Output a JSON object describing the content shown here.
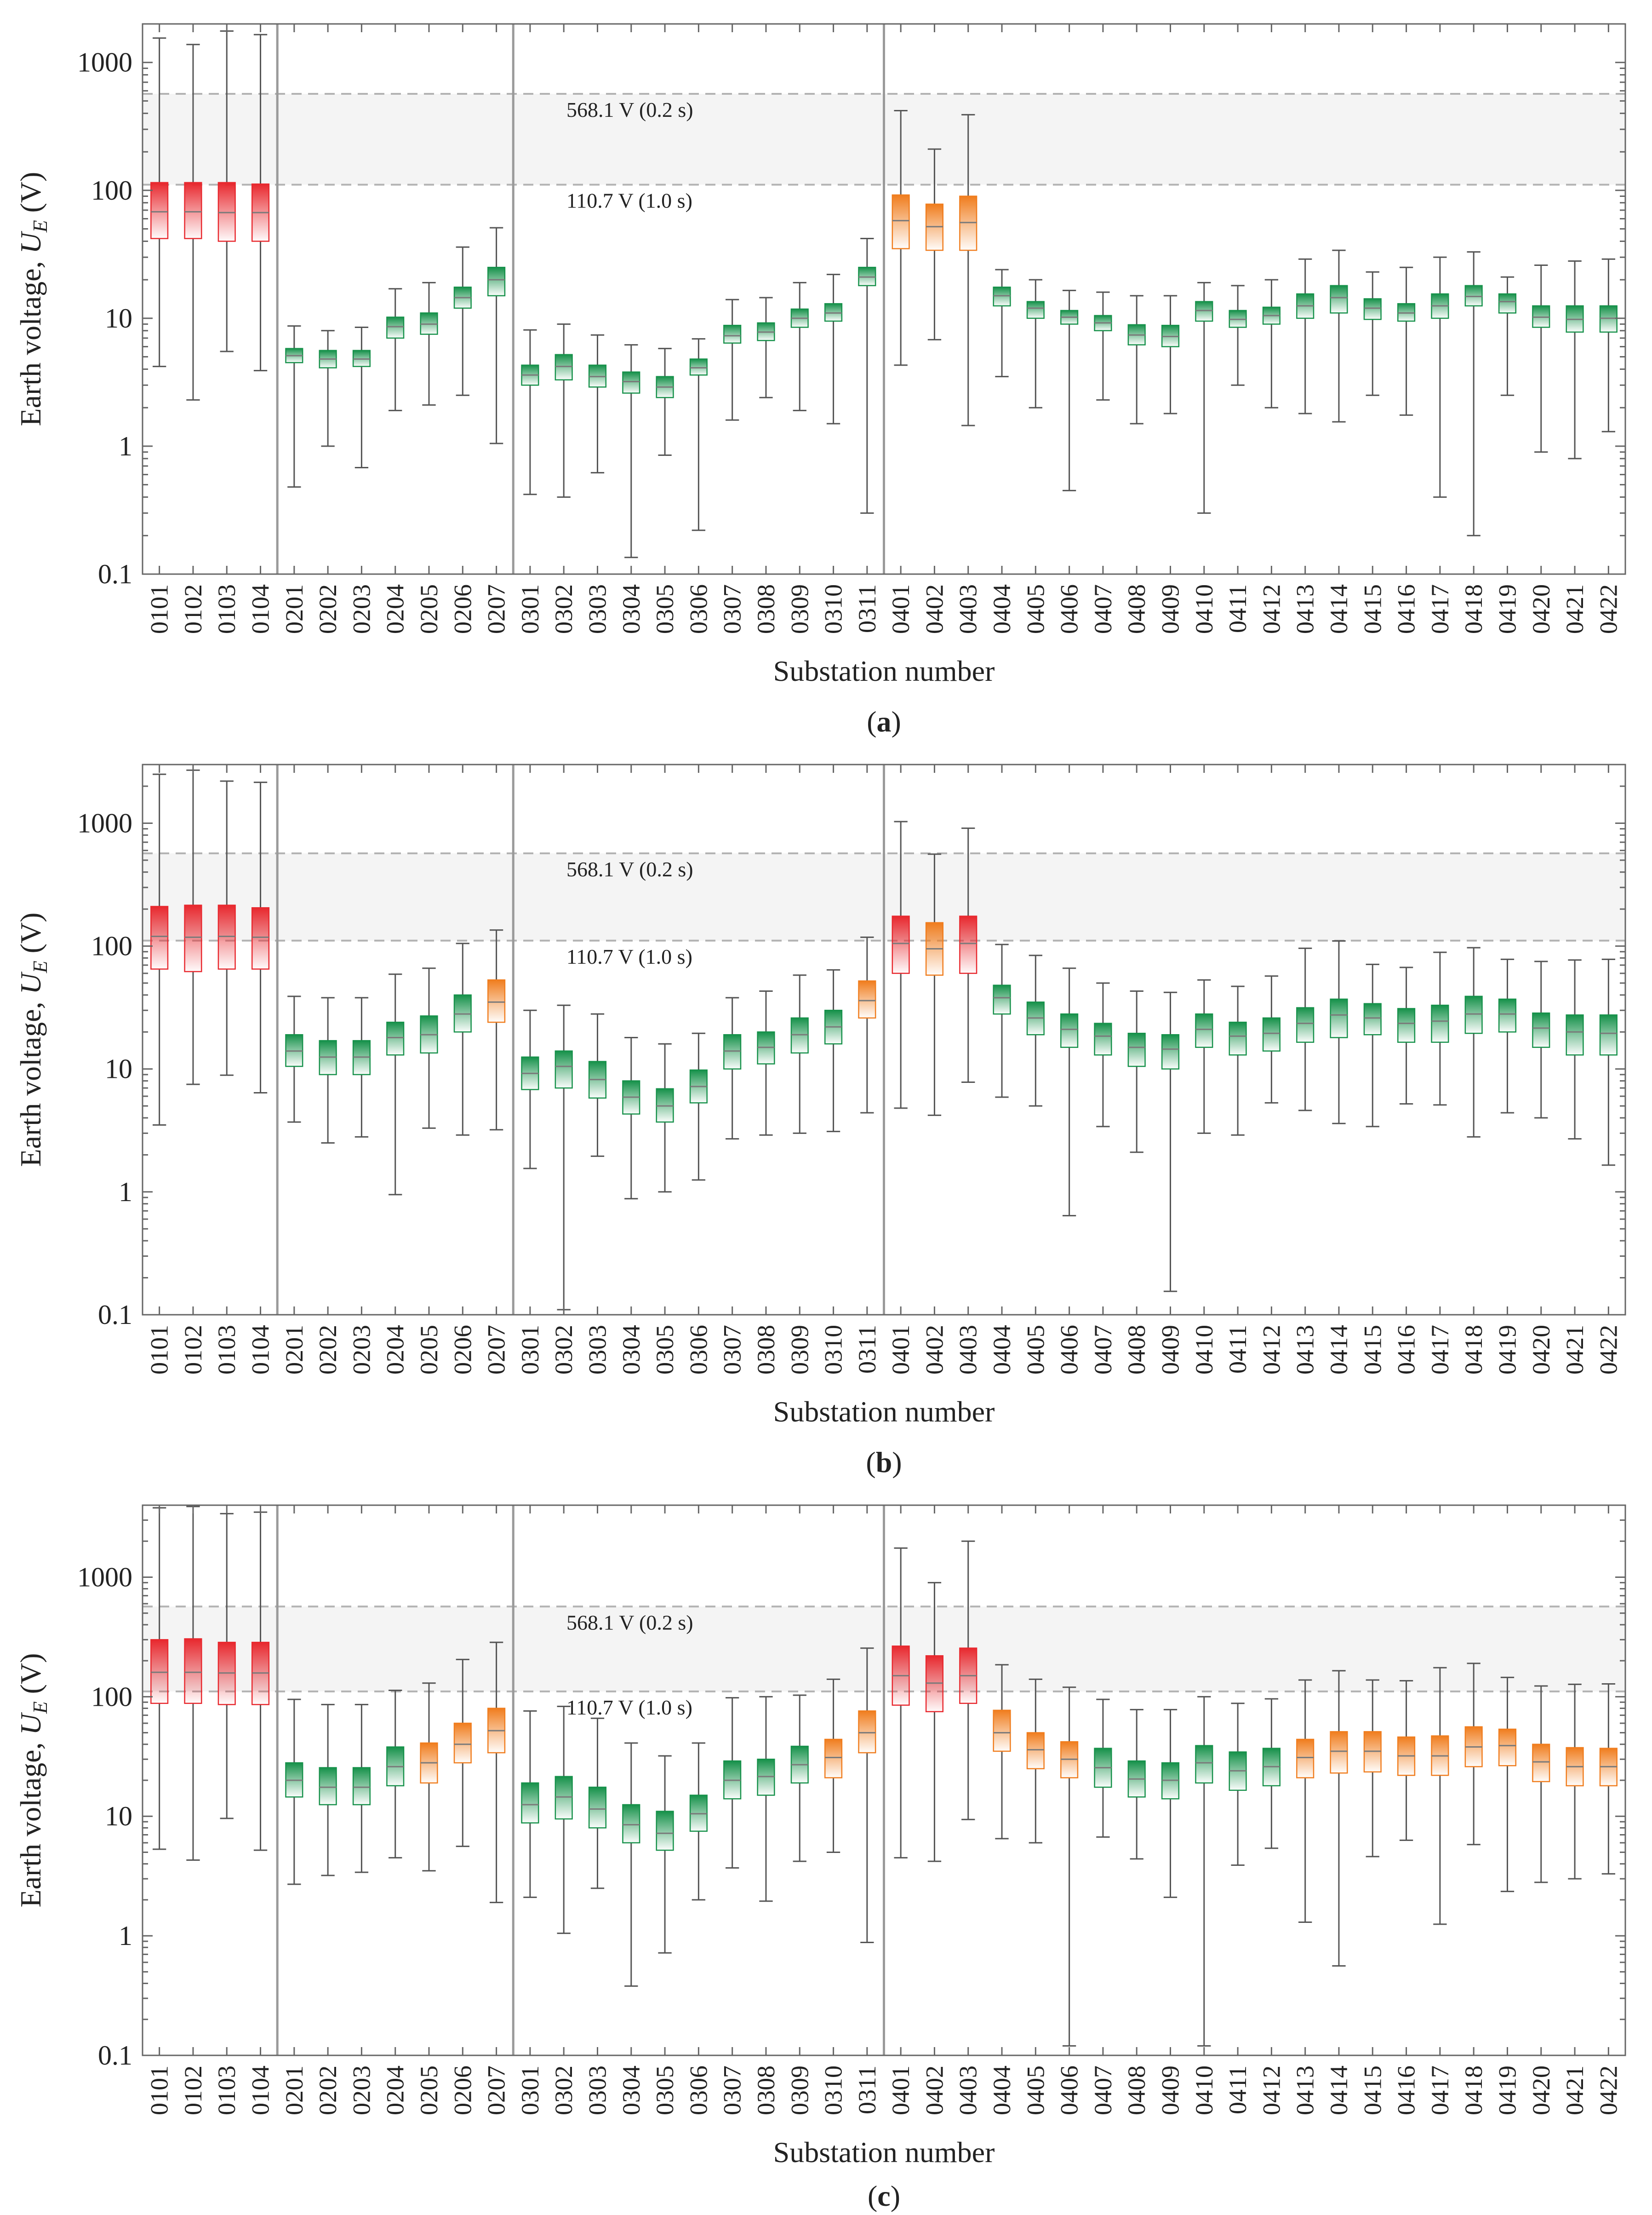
{
  "figure": {
    "panels": [
      "(a)",
      "(b)",
      "(c)"
    ]
  },
  "colors": {
    "red": "#e8282e",
    "orange": "#f07d1e",
    "green": "#16914a",
    "band": "#f4f4f4",
    "threshold_line": "#b3b3b3",
    "whisker": "#555555",
    "axis": "#666666"
  },
  "chart_data": [
    {
      "type": "box",
      "panel": "(a)",
      "ylabel": "Earth voltage, U_E (V)",
      "ylabel_main": "Earth voltage, ",
      "ylabel_var": "U",
      "ylabel_sub": "E",
      "ylabel_unit": " (V)",
      "xlabel": "Substation number",
      "yscale": "log",
      "ylim": [
        0.1,
        2000
      ],
      "yticks": [
        "0.1",
        "1",
        "10",
        "100",
        "1000"
      ],
      "thresholds": [
        {
          "value": 568.1,
          "label": "568.1 V (0.2 s)"
        },
        {
          "value": 110.7,
          "label": "110.7 V (1.0 s)"
        }
      ],
      "group_separators_after": [
        "0104",
        "0207",
        "0311"
      ],
      "categories": [
        "0101",
        "0102",
        "0103",
        "0104",
        "0201",
        "0202",
        "0203",
        "0204",
        "0205",
        "0206",
        "0207",
        "0301",
        "0302",
        "0303",
        "0304",
        "0305",
        "0306",
        "0307",
        "0308",
        "0309",
        "0310",
        "0311",
        "0401",
        "0402",
        "0403",
        "0404",
        "0405",
        "0406",
        "0407",
        "0408",
        "0409",
        "0410",
        "0411",
        "0412",
        "0413",
        "0414",
        "0415",
        "0416",
        "0417",
        "0418",
        "0419",
        "0420",
        "0421",
        "0422"
      ],
      "min": [
        4.2,
        2.3,
        5.5,
        3.9,
        0.48,
        1.0,
        0.68,
        1.9,
        2.1,
        2.5,
        1.05,
        0.42,
        0.4,
        0.62,
        0.135,
        0.85,
        0.22,
        1.6,
        2.4,
        1.9,
        1.5,
        0.3,
        4.3,
        6.8,
        1.45,
        3.5,
        2.0,
        0.45,
        2.3,
        1.5,
        1.8,
        0.3,
        3.0,
        2.0,
        1.8,
        1.55,
        2.5,
        1.75,
        0.4,
        0.2,
        2.5,
        0.9,
        0.8,
        1.3
      ],
      "q1": [
        42,
        42,
        40,
        40,
        4.5,
        4.1,
        4.2,
        7.0,
        7.5,
        12,
        15,
        3.0,
        3.3,
        2.9,
        2.6,
        2.4,
        3.6,
        6.4,
        6.7,
        8.5,
        9.5,
        18,
        35,
        34,
        34,
        12.5,
        10,
        9.0,
        8.0,
        6.2,
        6.0,
        9.5,
        8.5,
        9.0,
        10,
        11,
        9.8,
        9.5,
        10,
        12.5,
        11,
        8.5,
        7.8,
        7.8
      ],
      "median": [
        68,
        68,
        67,
        67,
        5.1,
        4.8,
        4.8,
        8.6,
        9.0,
        14.5,
        20,
        3.6,
        4.2,
        3.5,
        3.2,
        2.9,
        4.1,
        7.3,
        7.8,
        10,
        11,
        21,
        58,
        52,
        56,
        15,
        12,
        10.2,
        9.2,
        7.4,
        7.2,
        11.5,
        9.8,
        10.5,
        12.5,
        14.5,
        12,
        11,
        12.5,
        14.8,
        13.5,
        10.2,
        9.8,
        10
      ],
      "q3": [
        115,
        115,
        115,
        112,
        5.8,
        5.6,
        5.6,
        10.2,
        11,
        17.5,
        25,
        4.3,
        5.2,
        4.3,
        3.8,
        3.5,
        4.8,
        8.8,
        9.2,
        11.8,
        13,
        25,
        92,
        78,
        90,
        17.5,
        13.5,
        11.5,
        10.5,
        8.9,
        8.8,
        13.5,
        11.5,
        12.2,
        15.5,
        18,
        14.2,
        13,
        15.5,
        18,
        15.5,
        12.5,
        12.5,
        12.5
      ],
      "max": [
        1550,
        1380,
        1760,
        1650,
        8.7,
        8.0,
        8.5,
        17,
        19,
        36,
        51,
        8.1,
        9.0,
        7.4,
        6.2,
        5.8,
        6.9,
        14,
        14.5,
        19,
        22,
        42,
        420,
        210,
        390,
        24,
        20,
        16.5,
        16,
        15,
        15,
        19,
        18,
        20,
        29,
        34,
        23,
        25,
        30,
        33,
        21,
        26,
        28,
        29
      ],
      "colors": [
        "red",
        "red",
        "red",
        "red",
        "green",
        "green",
        "green",
        "green",
        "green",
        "green",
        "green",
        "green",
        "green",
        "green",
        "green",
        "green",
        "green",
        "green",
        "green",
        "green",
        "green",
        "green",
        "orange",
        "orange",
        "orange",
        "green",
        "green",
        "green",
        "green",
        "green",
        "green",
        "green",
        "green",
        "green",
        "green",
        "green",
        "green",
        "green",
        "green",
        "green",
        "green",
        "green",
        "green",
        "green"
      ]
    },
    {
      "type": "box",
      "panel": "(b)",
      "ylabel": "Earth voltage, U_E (V)",
      "ylabel_main": "Earth voltage, ",
      "ylabel_var": "U",
      "ylabel_sub": "E",
      "ylabel_unit": " (V)",
      "xlabel": "Substation number",
      "yscale": "log",
      "ylim": [
        0.1,
        3000
      ],
      "yticks": [
        "0.1",
        "1",
        "10",
        "100",
        "1000"
      ],
      "thresholds": [
        {
          "value": 568.1,
          "label": "568.1 V (0.2 s)"
        },
        {
          "value": 110.7,
          "label": "110.7 V (1.0 s)"
        }
      ],
      "group_separators_after": [
        "0104",
        "0207",
        "0311"
      ],
      "categories": [
        "0101",
        "0102",
        "0103",
        "0104",
        "0201",
        "0202",
        "0203",
        "0204",
        "0205",
        "0206",
        "0207",
        "0301",
        "0302",
        "0303",
        "0304",
        "0305",
        "0306",
        "0307",
        "0308",
        "0309",
        "0310",
        "0311",
        "0401",
        "0402",
        "0403",
        "0404",
        "0405",
        "0406",
        "0407",
        "0408",
        "0409",
        "0410",
        "0411",
        "0412",
        "0413",
        "0414",
        "0415",
        "0416",
        "0417",
        "0418",
        "0419",
        "0420",
        "0421",
        "0422"
      ],
      "min": [
        3.5,
        7.5,
        8.9,
        6.4,
        3.7,
        2.5,
        2.8,
        0.95,
        3.3,
        2.9,
        3.2,
        1.55,
        0.11,
        1.95,
        0.88,
        1.0,
        1.25,
        2.7,
        2.9,
        3.0,
        3.1,
        4.4,
        4.8,
        4.2,
        7.8,
        5.9,
        5.0,
        0.64,
        3.4,
        2.1,
        0.155,
        3.0,
        2.9,
        5.3,
        4.6,
        3.6,
        3.4,
        5.2,
        5.1,
        2.8,
        4.4,
        4.0,
        2.7,
        1.65
      ],
      "q1": [
        65,
        62,
        65,
        65,
        10.5,
        9.0,
        9.0,
        13,
        13.5,
        20,
        24,
        6.8,
        7.0,
        5.8,
        4.3,
        3.7,
        5.3,
        10,
        11,
        13.5,
        16,
        26,
        60,
        58,
        60,
        28,
        19,
        15,
        13,
        10.5,
        10,
        15,
        13,
        14,
        16.5,
        18,
        19,
        16.5,
        16.5,
        19.5,
        20,
        15,
        13,
        13
      ],
      "median": [
        120,
        118,
        120,
        118,
        14,
        12.5,
        12.5,
        18,
        19,
        28,
        35,
        9.2,
        10.5,
        8.2,
        5.9,
        5.0,
        7.2,
        14,
        15,
        19,
        22,
        36,
        105,
        95,
        105,
        38,
        26,
        21,
        18.5,
        15,
        14.5,
        21,
        18.5,
        19.5,
        23.5,
        27.5,
        26,
        23.5,
        24.5,
        28,
        28,
        21.5,
        20,
        19.5
      ],
      "q3": [
        210,
        215,
        215,
        205,
        19,
        17,
        17,
        24,
        27,
        40,
        53,
        12.5,
        14,
        11.5,
        8.0,
        6.9,
        9.8,
        19,
        20,
        26,
        30,
        52,
        175,
        155,
        175,
        48,
        35,
        28,
        23.5,
        19.5,
        19,
        28,
        24,
        26,
        31.5,
        37,
        34,
        31,
        33,
        39,
        37,
        28.5,
        27.5,
        27.5
      ],
      "max": [
        2500,
        2700,
        2200,
        2150,
        39,
        38,
        38,
        59,
        66,
        105,
        135,
        30,
        33,
        28,
        18,
        16,
        19.5,
        38,
        43,
        58,
        64,
        118,
        1030,
        560,
        910,
        103,
        84,
        66,
        50,
        43,
        42,
        53,
        47,
        57,
        96,
        110,
        71,
        67,
        89,
        97,
        78,
        75,
        77,
        78
      ],
      "colors": [
        "red",
        "red",
        "red",
        "red",
        "green",
        "green",
        "green",
        "green",
        "green",
        "green",
        "orange",
        "green",
        "green",
        "green",
        "green",
        "green",
        "green",
        "green",
        "green",
        "green",
        "green",
        "orange",
        "red",
        "orange",
        "red",
        "green",
        "green",
        "green",
        "green",
        "green",
        "green",
        "green",
        "green",
        "green",
        "green",
        "green",
        "green",
        "green",
        "green",
        "green",
        "green",
        "green",
        "green",
        "green"
      ]
    },
    {
      "type": "box",
      "panel": "(c)",
      "ylabel": "Earth voltage, U_E (V)",
      "ylabel_main": "Earth voltage, ",
      "ylabel_var": "U",
      "ylabel_sub": "E",
      "ylabel_unit": " (V)",
      "xlabel": "Substation number",
      "yscale": "log",
      "ylim": [
        0.1,
        4000
      ],
      "yticks": [
        "0.1",
        "1",
        "10",
        "100",
        "1000"
      ],
      "thresholds": [
        {
          "value": 568.1,
          "label": "568.1 V (0.2 s)"
        },
        {
          "value": 110.7,
          "label": "110.7 V (1.0 s)"
        }
      ],
      "group_separators_after": [
        "0104",
        "0207",
        "0311"
      ],
      "categories": [
        "0101",
        "0102",
        "0103",
        "0104",
        "0201",
        "0202",
        "0203",
        "0204",
        "0205",
        "0206",
        "0207",
        "0301",
        "0302",
        "0303",
        "0304",
        "0305",
        "0306",
        "0307",
        "0308",
        "0309",
        "0310",
        "0311",
        "0401",
        "0402",
        "0403",
        "0404",
        "0405",
        "0406",
        "0407",
        "0408",
        "0409",
        "0410",
        "0411",
        "0412",
        "0413",
        "0414",
        "0415",
        "0416",
        "0417",
        "0418",
        "0419",
        "0420",
        "0421",
        "0422"
      ],
      "min": [
        5.3,
        4.3,
        9.6,
        5.2,
        2.7,
        3.2,
        3.4,
        4.5,
        3.5,
        5.6,
        1.9,
        2.1,
        1.05,
        2.5,
        0.38,
        0.72,
        2.0,
        3.7,
        1.95,
        4.2,
        5.0,
        0.88,
        4.5,
        4.2,
        9.4,
        6.5,
        6.0,
        0.12,
        6.7,
        4.4,
        2.1,
        0.12,
        3.9,
        5.4,
        1.3,
        0.56,
        4.6,
        6.3,
        1.25,
        5.8,
        2.35,
        2.8,
        3.0,
        3.3
      ],
      "q1": [
        88,
        88,
        86,
        86,
        14.5,
        12.5,
        12.5,
        18,
        19,
        28,
        34,
        8.8,
        9.5,
        8.0,
        6.0,
        5.2,
        7.5,
        14,
        15,
        19,
        21,
        34,
        85,
        75,
        88,
        35,
        25,
        21,
        17.5,
        14.5,
        14,
        19,
        16.5,
        18,
        21,
        23,
        23.5,
        22,
        22,
        26,
        26.5,
        19.5,
        18,
        18
      ],
      "median": [
        160,
        160,
        158,
        158,
        20,
        17.5,
        17.5,
        26,
        28,
        40,
        52,
        12.5,
        14.5,
        11.5,
        8.5,
        7.2,
        10.5,
        20,
        21.5,
        27,
        31,
        50,
        150,
        130,
        150,
        50,
        36,
        30,
        25.5,
        20.5,
        20,
        28,
        24,
        26,
        31,
        35,
        35,
        32,
        32,
        38,
        39,
        28.5,
        26,
        26
      ],
      "q3": [
        300,
        305,
        285,
        285,
        28,
        25.5,
        25.5,
        38,
        41,
        60,
        80,
        19,
        21.5,
        17.5,
        12.5,
        11,
        15,
        29,
        30,
        38.5,
        44,
        76,
        265,
        220,
        255,
        77,
        50,
        42,
        37,
        29,
        28,
        39,
        34.5,
        37,
        44,
        51,
        51,
        46,
        47,
        56,
        53.5,
        40,
        37.5,
        37
      ],
      "max": [
        3800,
        3900,
        3400,
        3500,
        95,
        86,
        86,
        113,
        130,
        205,
        285,
        76,
        83,
        66,
        41,
        32,
        41,
        98,
        100,
        103,
        140,
        255,
        1750,
        900,
        2000,
        185,
        140,
        120,
        95,
        78,
        78,
        100,
        88,
        96,
        138,
        165,
        138,
        136,
        175,
        190,
        145,
        123,
        127,
        128
      ],
      "colors": [
        "red",
        "red",
        "red",
        "red",
        "green",
        "green",
        "green",
        "green",
        "orange",
        "orange",
        "orange",
        "green",
        "green",
        "green",
        "green",
        "green",
        "green",
        "green",
        "green",
        "green",
        "orange",
        "orange",
        "red",
        "red",
        "red",
        "orange",
        "orange",
        "orange",
        "green",
        "green",
        "green",
        "green",
        "green",
        "green",
        "orange",
        "orange",
        "orange",
        "orange",
        "orange",
        "orange",
        "orange",
        "orange",
        "orange",
        "orange"
      ]
    }
  ]
}
